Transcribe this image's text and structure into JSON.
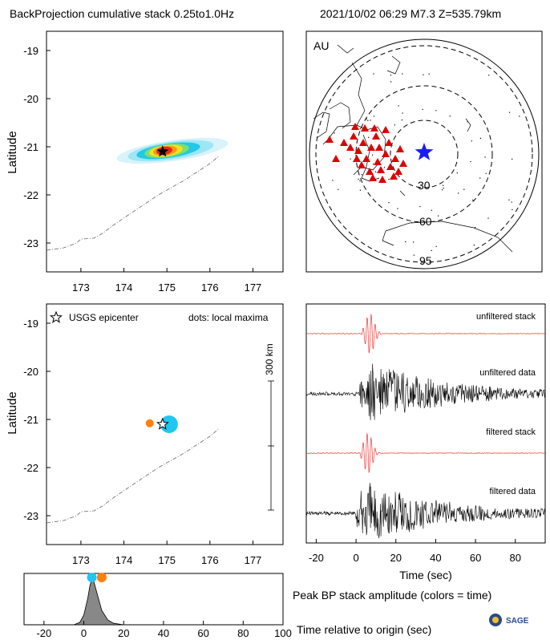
{
  "header": {
    "title": "BackProjection cumulative stack 0.25to1.0Hz",
    "event": "2021/10/02 06:29   M7.3  Z=535.79km"
  },
  "stack_map": {
    "ylabel": "Latitude",
    "yticks": [
      -19,
      -20,
      -21,
      -22,
      -23
    ],
    "xticks": [
      173,
      174,
      175,
      176,
      177
    ],
    "xlim": [
      172.2,
      177.7
    ],
    "ylim": [
      -23.6,
      -18.6
    ],
    "epicenter": [
      174.9,
      -21.1
    ],
    "trench": [
      [
        172.2,
        -23.15
      ],
      [
        172.6,
        -23.1
      ],
      [
        172.9,
        -23.0
      ],
      [
        173.0,
        -22.92
      ],
      [
        173.3,
        -22.9
      ],
      [
        173.5,
        -22.8
      ],
      [
        173.8,
        -22.6
      ],
      [
        174.3,
        -22.3
      ],
      [
        174.8,
        -22.0
      ],
      [
        175.4,
        -21.7
      ],
      [
        176.0,
        -21.35
      ],
      [
        176.2,
        -21.2
      ]
    ]
  },
  "station_map": {
    "label": "AU",
    "ring_labels": [
      "30",
      "60",
      "95"
    ],
    "colors": {
      "station": "#dd0000",
      "source": "#1a1aff"
    }
  },
  "maxima_map": {
    "ylabel": "Latitude",
    "legend_epicenter": "USGS epicenter",
    "legend_dots": "dots: local maxima",
    "scale_label": "300 km",
    "yticks": [
      -19,
      -20,
      -21,
      -22,
      -23
    ],
    "xticks": [
      173,
      174,
      175,
      176,
      177
    ],
    "maxima": [
      {
        "lon": 175.05,
        "lat": -21.1,
        "color": "#1ec8f0",
        "r": 11
      },
      {
        "lon": 174.6,
        "lat": -21.08,
        "color": "#ff7f0e",
        "r": 5
      }
    ]
  },
  "waveforms": {
    "labels": [
      "unfiltered stack",
      "unfiltered data",
      "filtered stack",
      "filtered data"
    ],
    "xlabel": "Time (sec)",
    "xticks": [
      -20,
      0,
      20,
      40,
      60,
      80
    ],
    "colors": {
      "stack": "#ff3333",
      "data": "#000000"
    }
  },
  "peak": {
    "caption": "Peak BP stack amplitude (colors = time)",
    "xlabel": "Time relative to origin (sec)",
    "xticks": [
      -20,
      0,
      20,
      40,
      60,
      80,
      100
    ],
    "markers": [
      {
        "time": 4,
        "color": "#1ec8f0"
      },
      {
        "time": 9,
        "color": "#ff7f0e"
      }
    ]
  },
  "logo": {
    "text": "SAGE"
  },
  "chart_data": [
    {
      "type": "heatmap",
      "title": "BackProjection cumulative stack 0.25to1.0Hz",
      "xlabel": "",
      "ylabel": "Latitude",
      "xlim": [
        172.2,
        177.7
      ],
      "ylim": [
        -23.6,
        -18.6
      ],
      "peak": {
        "lon": 174.9,
        "lat": -21.1
      }
    },
    {
      "type": "scatter",
      "ylabel": "Latitude",
      "xlim": [
        172.2,
        177.7
      ],
      "ylim": [
        -23.6,
        -18.6
      ],
      "series": [
        {
          "name": "USGS epicenter",
          "x": [
            174.9
          ],
          "y": [
            -21.1
          ]
        },
        {
          "name": "dots: local maxima",
          "x": [
            175.05,
            174.6
          ],
          "y": [
            -21.1,
            -21.08
          ]
        }
      ]
    },
    {
      "type": "line",
      "xlabel": "Time (sec)",
      "xlim": [
        -25,
        95
      ],
      "series": [
        {
          "name": "unfiltered stack",
          "peak_time": 10
        },
        {
          "name": "unfiltered data",
          "peak_time": 8
        },
        {
          "name": "filtered stack",
          "peak_time": 8
        },
        {
          "name": "filtered data",
          "peak_time": 5
        }
      ]
    },
    {
      "type": "area",
      "xlabel": "Time relative to origin (sec)",
      "xlim": [
        -30,
        100
      ],
      "x": [
        -30,
        -5,
        -2,
        0,
        2,
        3,
        4,
        5,
        7,
        9,
        12,
        15,
        20,
        100
      ],
      "y": [
        0,
        0,
        0.05,
        0.2,
        0.55,
        0.8,
        0.95,
        0.9,
        0.6,
        0.3,
        0.1,
        0.03,
        0,
        0
      ]
    }
  ]
}
